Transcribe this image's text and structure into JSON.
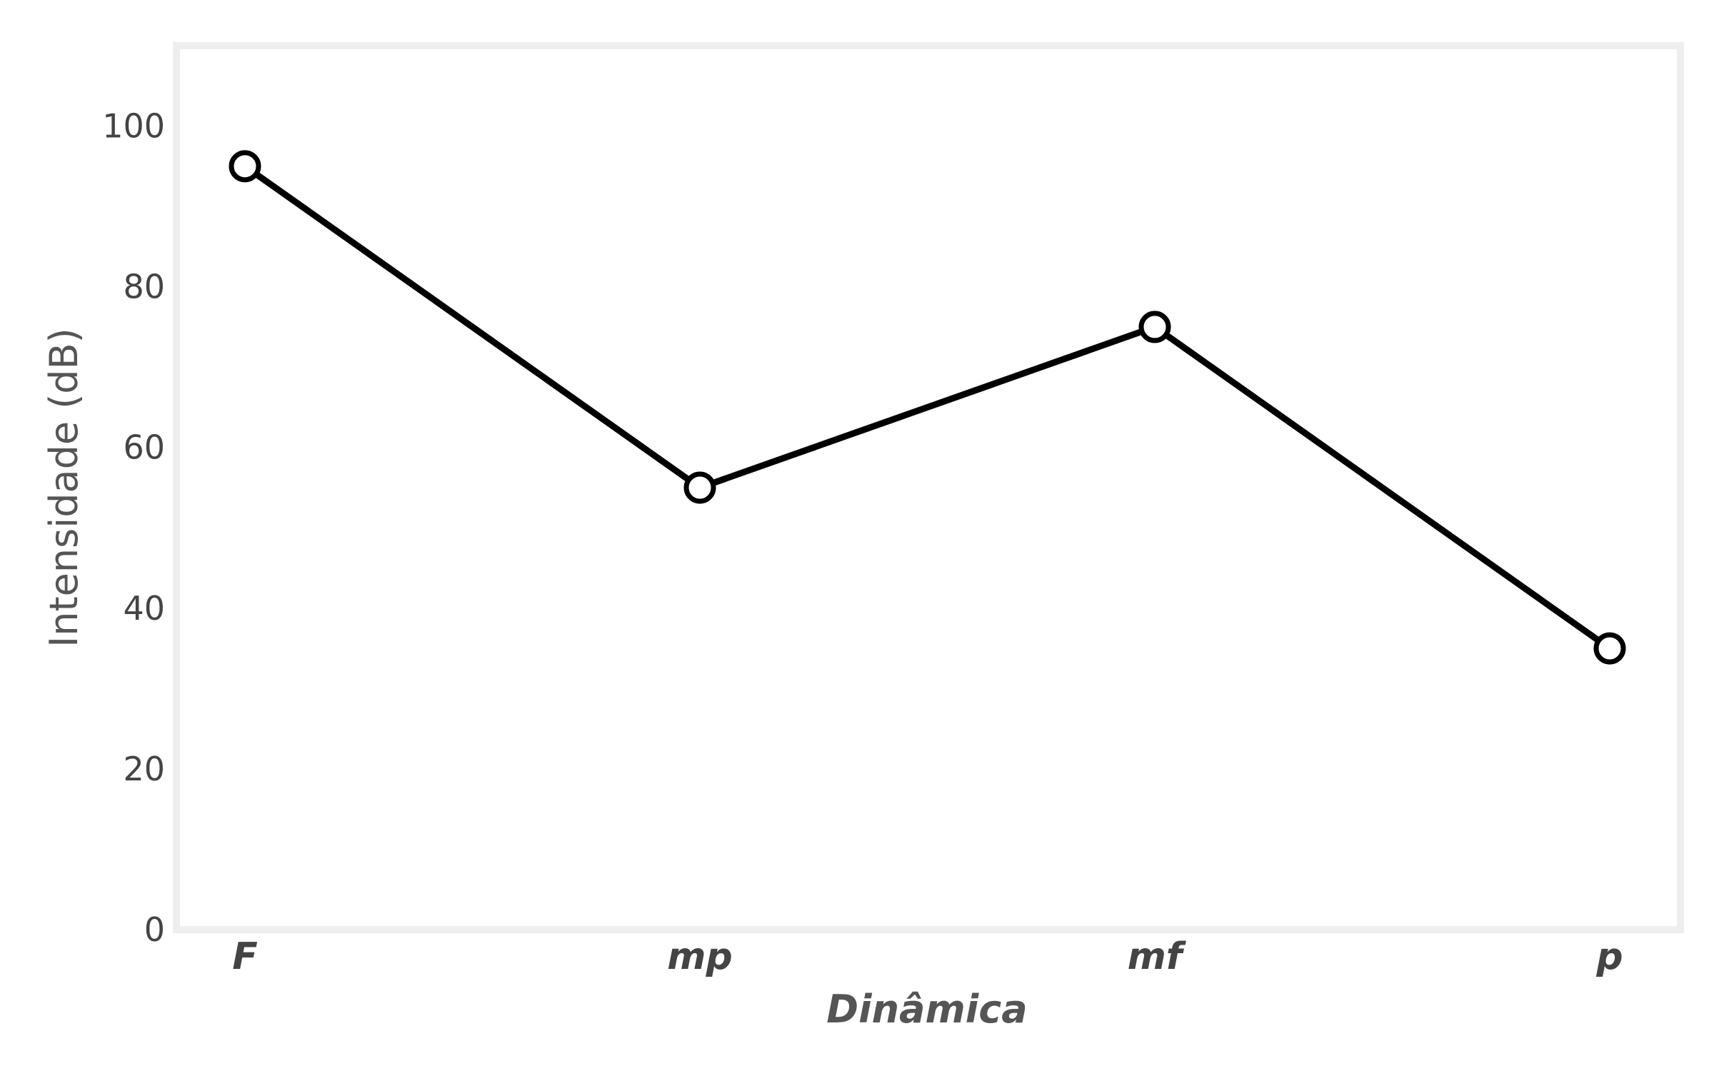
{
  "chart_data": {
    "type": "line",
    "title": "",
    "xlabel": "Dinâmica",
    "ylabel": "Intensidade (dB)",
    "categories": [
      "F",
      "mp",
      "mf",
      "p"
    ],
    "series": [
      {
        "values": [
          95,
          55,
          75,
          35
        ]
      }
    ],
    "ylim": [
      0,
      110
    ],
    "yticks": [
      0,
      20,
      40,
      60,
      80,
      100
    ],
    "grid": false,
    "legend": "none",
    "colors": {
      "line": "#000000",
      "marker_fill": "#ffffff",
      "frame": "#eeeeee",
      "tick_text": "#444444",
      "axis_title": "#555555"
    }
  }
}
